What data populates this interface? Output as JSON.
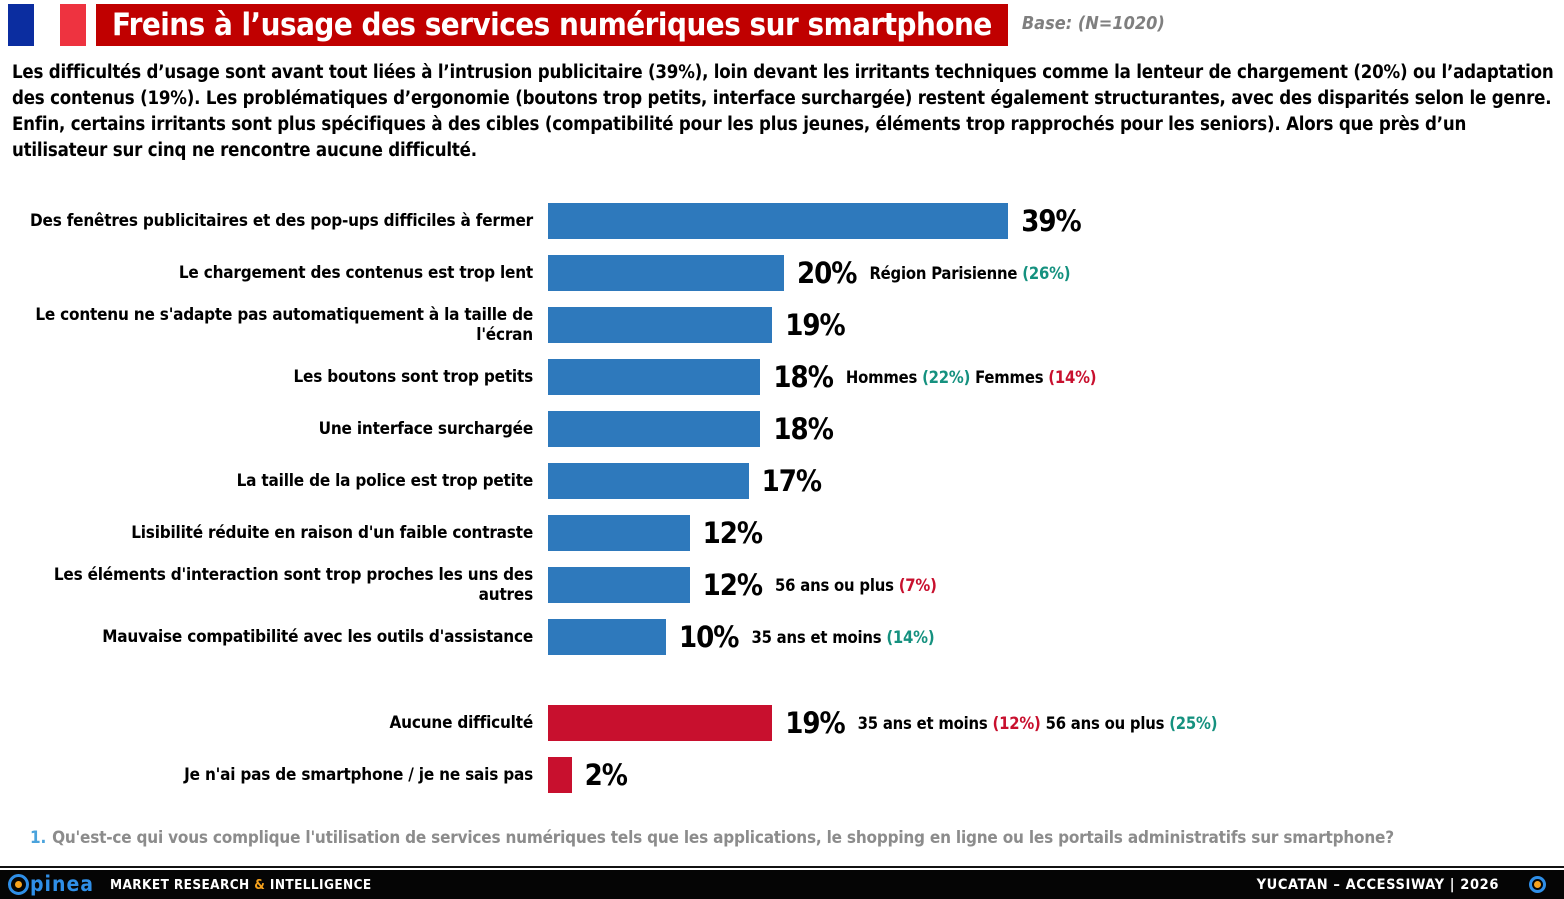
{
  "header": {
    "title": "Freins à l’usage des services numériques sur smartphone",
    "base_label": "Base: (N=1020)"
  },
  "intro": "Les difficultés d’usage sont avant tout liées à l’intrusion publicitaire (39%), loin devant les irritants techniques comme la lenteur de chargement (20%) ou l’adaptation des contenus (19%). Les problématiques d’ergonomie (boutons trop petits, interface surchargée) restent également structurantes, avec des disparités selon le genre. Enfin, certains irritants sont plus spécifiques à des cibles (compatibilité pour les plus jeunes, éléments trop rapprochés pour les seniors). Alors que près d’un utilisateur sur cinq ne rencontre aucune difficulté.",
  "chart_data": {
    "type": "bar",
    "orientation": "horizontal",
    "unit": "%",
    "xlim": [
      0,
      42
    ],
    "grid": false,
    "legend": false,
    "bar_colors": {
      "blue": "#2e79bc",
      "red": "#c8102e"
    },
    "annotation_colors": {
      "black": "#000000",
      "teal": "#15917f",
      "red": "#c8102e"
    },
    "bars": [
      {
        "label": "Des fenêtres publicitaires et des pop-ups difficiles à fermer",
        "value": 39,
        "value_label": "39%",
        "color": "blue",
        "annotations": []
      },
      {
        "label": "Le chargement des contenus est trop lent",
        "value": 20,
        "value_label": "20%",
        "color": "blue",
        "annotations": [
          {
            "text": "Région Parisienne",
            "color": "black"
          },
          {
            "text": "(26%)",
            "color": "teal"
          }
        ]
      },
      {
        "label": "Le contenu ne s'adapte pas automatiquement à la taille de l'écran",
        "value": 19,
        "value_label": "19%",
        "color": "blue",
        "annotations": []
      },
      {
        "label": "Les boutons sont trop petits",
        "value": 18,
        "value_label": "18%",
        "color": "blue",
        "annotations": [
          {
            "text": "Hommes",
            "color": "black"
          },
          {
            "text": "(22%)",
            "color": "teal"
          },
          {
            "text": "Femmes",
            "color": "black"
          },
          {
            "text": "(14%)",
            "color": "red"
          }
        ]
      },
      {
        "label": "Une interface surchargée",
        "value": 18,
        "value_label": "18%",
        "color": "blue",
        "annotations": []
      },
      {
        "label": "La taille de la police est trop petite",
        "value": 17,
        "value_label": "17%",
        "color": "blue",
        "annotations": []
      },
      {
        "label": "Lisibilité réduite en raison d'un faible contraste",
        "value": 12,
        "value_label": "12%",
        "color": "blue",
        "annotations": []
      },
      {
        "label": "Les éléments d'interaction sont trop proches les uns des autres",
        "value": 12,
        "value_label": "12%",
        "color": "blue",
        "annotations": [
          {
            "text": "56 ans ou plus",
            "color": "black"
          },
          {
            "text": "(7%)",
            "color": "red"
          }
        ]
      },
      {
        "label": "Mauvaise compatibilité avec les outils d'assistance",
        "value": 10,
        "value_label": "10%",
        "color": "blue",
        "annotations": [
          {
            "text": "35 ans et moins",
            "color": "black"
          },
          {
            "text": "(14%)",
            "color": "teal"
          }
        ]
      },
      {
        "label": "Aucune difficulté",
        "value": 19,
        "value_label": "19%",
        "color": "red",
        "gap_before": true,
        "annotations": [
          {
            "text": "35 ans et moins",
            "color": "black"
          },
          {
            "text": "(12%)",
            "color": "red"
          },
          {
            "text": "56 ans ou plus",
            "color": "black"
          },
          {
            "text": "(25%)",
            "color": "teal"
          }
        ]
      },
      {
        "label": "Je n'ai pas de smartphone / je ne sais pas",
        "value": 2,
        "value_label": "2%",
        "color": "red",
        "annotations": []
      }
    ]
  },
  "footnote": {
    "number": "1.",
    "text": "Qu'est-ce qui vous complique l'utilisation de services numériques tels que les applications, le shopping en ligne ou les portails administratifs sur smartphone?"
  },
  "footer": {
    "logo_text": "opinea",
    "logo_suffix": "pinea",
    "tagline_left": "MARKET RESEARCH",
    "tagline_amp": "&",
    "tagline_right": "INTELLIGENCE",
    "right_text": "YUCATAN – ACCESSIWAY | 2026"
  }
}
